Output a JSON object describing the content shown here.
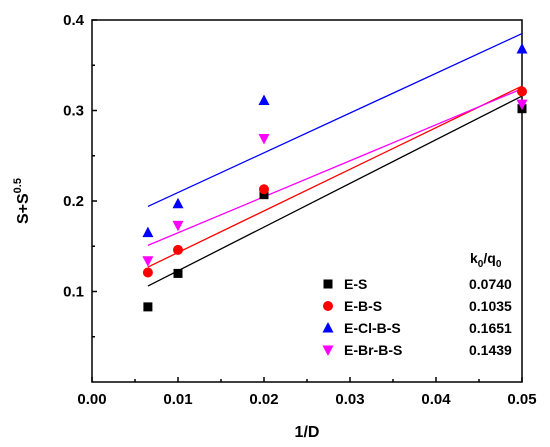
{
  "chart_data": {
    "type": "scatter",
    "xlabel": "1/D",
    "ylabel": "S+S",
    "ylabel_sup": "0.5",
    "xlim": [
      0.0,
      0.05
    ],
    "ylim": [
      0.0,
      0.4
    ],
    "x_ticks": [
      "0.00",
      "0.01",
      "0.02",
      "0.03",
      "0.04",
      "0.05"
    ],
    "y_ticks": [
      "0.1",
      "0.2",
      "0.3",
      "0.4"
    ],
    "legend_position": "bottom-right",
    "legend_header": "k",
    "legend_header_parts": [
      "k",
      "0",
      "/q",
      "0"
    ],
    "series": [
      {
        "name": "E-S",
        "value": "0.0740",
        "color": "#000000",
        "marker": "square",
        "x": [
          0.0065,
          0.01,
          0.02,
          0.05
        ],
        "y": [
          0.083,
          0.12,
          0.207,
          0.302
        ],
        "fit": {
          "x": [
            0.0065,
            0.05
          ],
          "y": [
            0.106,
            0.316
          ]
        }
      },
      {
        "name": "E-B-S",
        "value": "0.1035",
        "color": "#ff0000",
        "marker": "circle",
        "x": [
          0.0065,
          0.01,
          0.02,
          0.05
        ],
        "y": [
          0.121,
          0.146,
          0.213,
          0.321
        ],
        "fit": {
          "x": [
            0.0065,
            0.05
          ],
          "y": [
            0.127,
            0.327
          ]
        }
      },
      {
        "name": "E-Cl-B-S",
        "value": "0.1651",
        "color": "#0000ff",
        "marker": "triangle-up",
        "x": [
          0.0065,
          0.01,
          0.02,
          0.05
        ],
        "y": [
          0.165,
          0.197,
          0.311,
          0.368
        ],
        "fit": {
          "x": [
            0.0065,
            0.05
          ],
          "y": [
            0.194,
            0.385
          ]
        }
      },
      {
        "name": "E-Br-B-S",
        "value": "0.1439",
        "color": "#ff00ff",
        "marker": "triangle-down",
        "x": [
          0.0065,
          0.01,
          0.02,
          0.05
        ],
        "y": [
          0.134,
          0.173,
          0.269,
          0.307
        ],
        "fit": {
          "x": [
            0.0065,
            0.05
          ],
          "y": [
            0.151,
            0.324
          ]
        }
      }
    ]
  }
}
